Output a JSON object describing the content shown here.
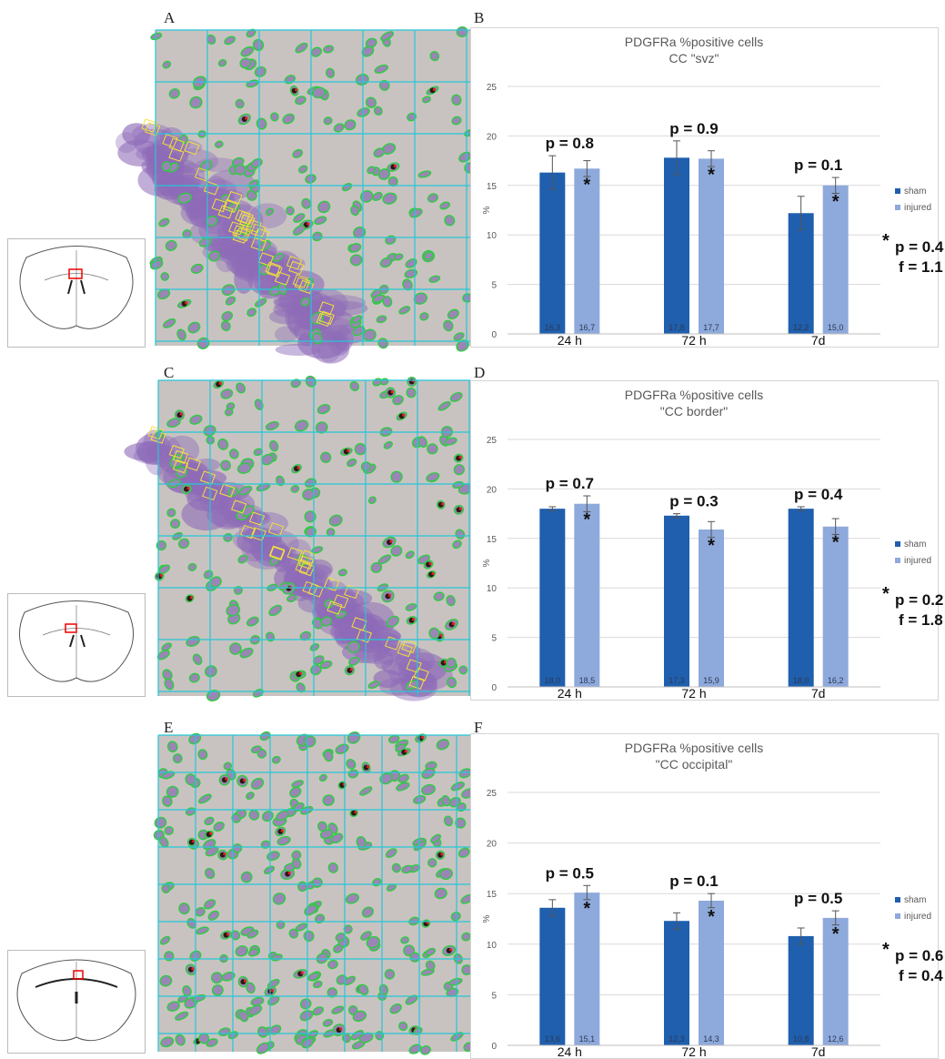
{
  "panels": {
    "A": "A",
    "B": "B",
    "C": "C",
    "D": "D",
    "E": "E",
    "F": "F"
  },
  "colors": {
    "sham": "#1F5FAE",
    "injured": "#8EA9DB",
    "grid_overlay": "#26c6d6",
    "cell_outline": "#2ecc40",
    "stain_purple": "#8e6bb8"
  },
  "chart_data": [
    {
      "type": "bar",
      "title": "PDGFRa %positive cells",
      "subtitle": "CC \"svz\"",
      "ylabel": "%",
      "ylim": [
        0,
        25
      ],
      "yticks": [
        0,
        5,
        10,
        15,
        20,
        25
      ],
      "categories": [
        "24 h",
        "72 h",
        "7d"
      ],
      "series": [
        {
          "name": "sham",
          "values": [
            16.3,
            17.8,
            12.2
          ],
          "errors": [
            1.7,
            1.7,
            1.7
          ],
          "labels": [
            "16,3",
            "17,8",
            "12,2"
          ]
        },
        {
          "name": "injured",
          "values": [
            16.7,
            17.7,
            15.0
          ],
          "errors": [
            0.8,
            0.8,
            0.8
          ],
          "labels": [
            "16,7",
            "17,7",
            "15,0"
          ]
        }
      ],
      "p_values": [
        "p = 0.8",
        "p = 0.9",
        "p = 0.1"
      ],
      "stats": {
        "p": "p = 0.4",
        "f": "f = 1.1"
      },
      "legend": "right"
    },
    {
      "type": "bar",
      "title": "PDGFRa %positive cells",
      "subtitle": "\"CC border\"",
      "ylabel": "%",
      "ylim": [
        0,
        25
      ],
      "yticks": [
        0,
        5,
        10,
        15,
        20,
        25
      ],
      "categories": [
        "24 h",
        "72 h",
        "7d"
      ],
      "series": [
        {
          "name": "sham",
          "values": [
            18.0,
            17.3,
            18.0
          ],
          "errors": [
            0.2,
            0.2,
            0.2
          ],
          "labels": [
            "18,0",
            "17,3",
            "18,0"
          ]
        },
        {
          "name": "injured",
          "values": [
            18.5,
            15.9,
            16.2
          ],
          "errors": [
            0.8,
            0.8,
            0.8
          ],
          "labels": [
            "18,5",
            "15,9",
            "16,2"
          ]
        }
      ],
      "p_values": [
        "p = 0.7",
        "p = 0.3",
        "p = 0.4"
      ],
      "stats": {
        "p": "p = 0.2",
        "f": "f = 1.8"
      },
      "legend": "right"
    },
    {
      "type": "bar",
      "title": "PDGFRa %positive cells",
      "subtitle": "\"CC occipital\"",
      "ylabel": "%",
      "ylim": [
        0,
        25
      ],
      "yticks": [
        0,
        5,
        10,
        15,
        20,
        25
      ],
      "categories": [
        "24 h",
        "72 h",
        "7d"
      ],
      "series": [
        {
          "name": "sham",
          "values": [
            13.6,
            12.3,
            10.8
          ],
          "errors": [
            0.8,
            0.8,
            0.8
          ],
          "labels": [
            "13,6",
            "12,3",
            "10,8"
          ]
        },
        {
          "name": "injured",
          "values": [
            15.1,
            14.3,
            12.6
          ],
          "errors": [
            0.7,
            0.7,
            0.7
          ],
          "labels": [
            "15,1",
            "14,3",
            "12,6"
          ]
        }
      ],
      "p_values": [
        "p = 0.5",
        "p = 0.1",
        "p = 0.5"
      ],
      "stats": {
        "p": "p = 0.6",
        "f": "f = 0.4"
      },
      "legend": "right"
    }
  ]
}
